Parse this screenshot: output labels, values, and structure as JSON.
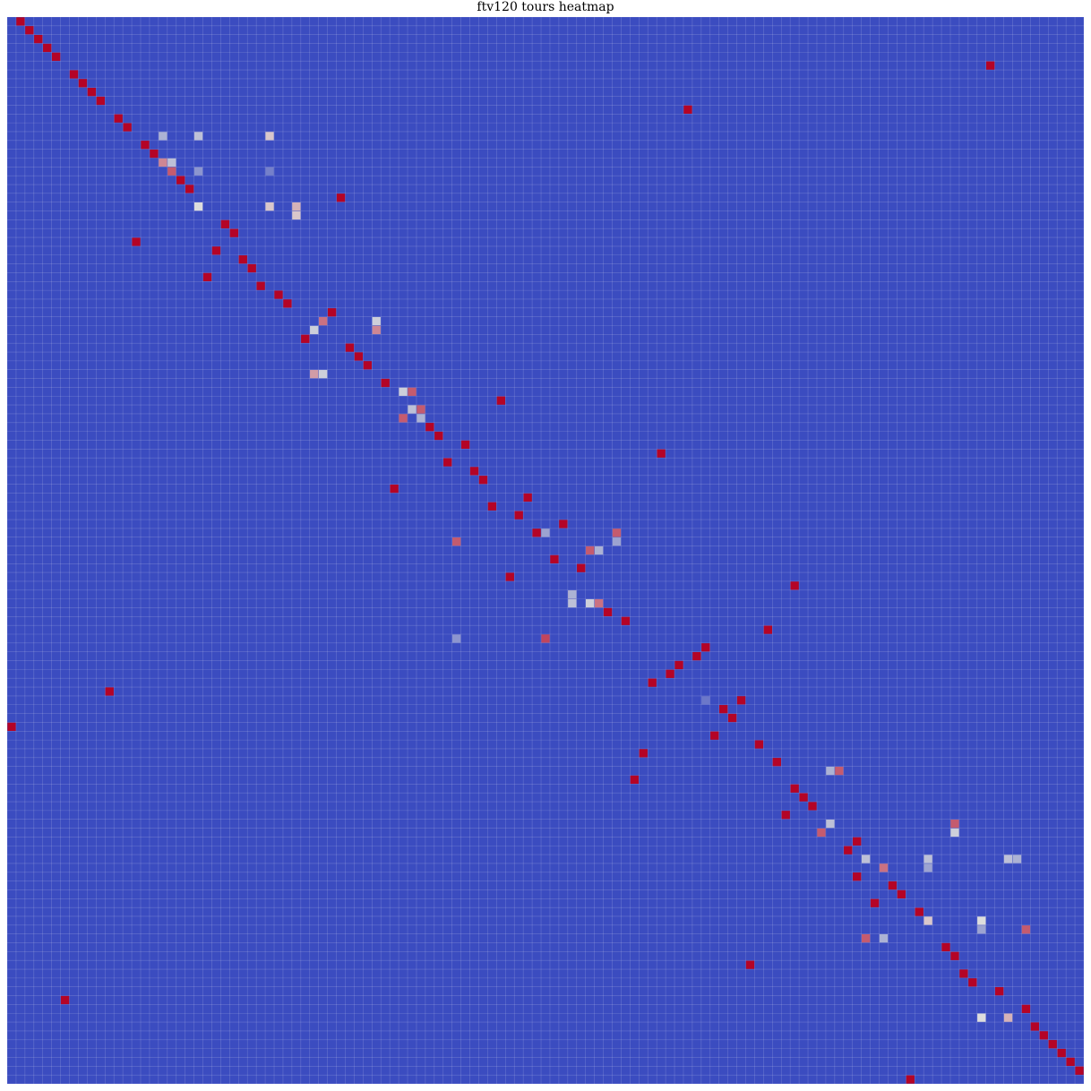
{
  "chart_data": {
    "type": "heatmap",
    "title": "ftv120 tours heatmap",
    "rows": 121,
    "cols": 121,
    "value_range": [
      0,
      1
    ],
    "colormap": "coolwarm",
    "colors": {
      "low": "#3b4cc0",
      "mid": "#dddddd",
      "high": "#b40426",
      "gridline": "#ffffff"
    },
    "grid": true,
    "legend": "none",
    "background_value": 0,
    "cells": [
      [
        0,
        1,
        1
      ],
      [
        1,
        2,
        1
      ],
      [
        2,
        3,
        1
      ],
      [
        3,
        4,
        1
      ],
      [
        4,
        5,
        1
      ],
      [
        5,
        110,
        1
      ],
      [
        6,
        7,
        1
      ],
      [
        7,
        8,
        1
      ],
      [
        8,
        9,
        1
      ],
      [
        9,
        10,
        1
      ],
      [
        10,
        76,
        1
      ],
      [
        11,
        12,
        1
      ],
      [
        12,
        13,
        1
      ],
      [
        13,
        17,
        0.35
      ],
      [
        13,
        21,
        0.4
      ],
      [
        13,
        29,
        0.55
      ],
      [
        14,
        15,
        1
      ],
      [
        15,
        16,
        1
      ],
      [
        16,
        17,
        0.7
      ],
      [
        16,
        18,
        0.4
      ],
      [
        17,
        18,
        0.8
      ],
      [
        17,
        21,
        0.25
      ],
      [
        17,
        29,
        0.18
      ],
      [
        18,
        19,
        1
      ],
      [
        19,
        20,
        1
      ],
      [
        20,
        37,
        1
      ],
      [
        21,
        21,
        0.5
      ],
      [
        21,
        29,
        0.55
      ],
      [
        21,
        32,
        0.6
      ],
      [
        22,
        32,
        0.55
      ],
      [
        23,
        24,
        1
      ],
      [
        24,
        25,
        1
      ],
      [
        25,
        14,
        1
      ],
      [
        26,
        23,
        1
      ],
      [
        27,
        26,
        1
      ],
      [
        28,
        27,
        1
      ],
      [
        29,
        22,
        1
      ],
      [
        30,
        28,
        1
      ],
      [
        31,
        30,
        1
      ],
      [
        32,
        31,
        1
      ],
      [
        33,
        36,
        1
      ],
      [
        34,
        35,
        0.75
      ],
      [
        34,
        41,
        0.45
      ],
      [
        35,
        34,
        0.45
      ],
      [
        35,
        41,
        0.7
      ],
      [
        36,
        33,
        1
      ],
      [
        37,
        38,
        1
      ],
      [
        38,
        39,
        1
      ],
      [
        39,
        40,
        1
      ],
      [
        40,
        34,
        0.65
      ],
      [
        40,
        35,
        0.45
      ],
      [
        41,
        42,
        1
      ],
      [
        42,
        44,
        0.45
      ],
      [
        42,
        45,
        0.8
      ],
      [
        43,
        55,
        1
      ],
      [
        44,
        45,
        0.4
      ],
      [
        44,
        46,
        0.8
      ],
      [
        45,
        44,
        0.8
      ],
      [
        45,
        46,
        0.35
      ],
      [
        46,
        47,
        1
      ],
      [
        47,
        48,
        1
      ],
      [
        48,
        51,
        1
      ],
      [
        49,
        73,
        1
      ],
      [
        50,
        49,
        1
      ],
      [
        51,
        52,
        1
      ],
      [
        52,
        53,
        1
      ],
      [
        53,
        43,
        1
      ],
      [
        54,
        58,
        1
      ],
      [
        55,
        54,
        1
      ],
      [
        56,
        57,
        1
      ],
      [
        57,
        62,
        1
      ],
      [
        58,
        59,
        1
      ],
      [
        58,
        60,
        0.3
      ],
      [
        58,
        68,
        0.8
      ],
      [
        59,
        50,
        0.8
      ],
      [
        59,
        68,
        0.3
      ],
      [
        60,
        65,
        0.8
      ],
      [
        60,
        66,
        0.35
      ],
      [
        61,
        61,
        1
      ],
      [
        62,
        64,
        1
      ],
      [
        63,
        56,
        1
      ],
      [
        64,
        88,
        1
      ],
      [
        65,
        63,
        0.7
      ],
      [
        65,
        63,
        0.35
      ],
      [
        66,
        63,
        0.4
      ],
      [
        66,
        65,
        0.45
      ],
      [
        66,
        66,
        0.75
      ],
      [
        67,
        67,
        1
      ],
      [
        68,
        69,
        1
      ],
      [
        69,
        85,
        1
      ],
      [
        70,
        50,
        0.25
      ],
      [
        70,
        60,
        0.85
      ],
      [
        71,
        78,
        1
      ],
      [
        72,
        77,
        1
      ],
      [
        73,
        75,
        1
      ],
      [
        74,
        74,
        1
      ],
      [
        75,
        72,
        1
      ],
      [
        76,
        11,
        1
      ],
      [
        77,
        78,
        0.15
      ],
      [
        77,
        82,
        1
      ],
      [
        78,
        80,
        1
      ],
      [
        79,
        81,
        1
      ],
      [
        80,
        0,
        1
      ],
      [
        81,
        79,
        1
      ],
      [
        82,
        84,
        1
      ],
      [
        83,
        71,
        1
      ],
      [
        84,
        86,
        1
      ],
      [
        85,
        92,
        0.35
      ],
      [
        85,
        93,
        0.8
      ],
      [
        86,
        70,
        1
      ],
      [
        87,
        88,
        1
      ],
      [
        88,
        89,
        1
      ],
      [
        89,
        90,
        1
      ],
      [
        90,
        87,
        1
      ],
      [
        91,
        92,
        0.4
      ],
      [
        91,
        106,
        0.8
      ],
      [
        92,
        91,
        0.8
      ],
      [
        92,
        106,
        0.45
      ],
      [
        93,
        95,
        1
      ],
      [
        94,
        94,
        1
      ],
      [
        95,
        96,
        0.4
      ],
      [
        95,
        103,
        0.4
      ],
      [
        95,
        112,
        0.4
      ],
      [
        95,
        113,
        0.35
      ],
      [
        96,
        98,
        0.75
      ],
      [
        96,
        103,
        0.3
      ],
      [
        97,
        95,
        1
      ],
      [
        98,
        99,
        1
      ],
      [
        99,
        100,
        1
      ],
      [
        100,
        97,
        1
      ],
      [
        101,
        102,
        1
      ],
      [
        102,
        103,
        0.55
      ],
      [
        102,
        109,
        0.5
      ],
      [
        103,
        109,
        0.3
      ],
      [
        103,
        114,
        0.8
      ],
      [
        104,
        96,
        0.8
      ],
      [
        104,
        98,
        0.35
      ],
      [
        105,
        105,
        1
      ],
      [
        106,
        106,
        1
      ],
      [
        107,
        83,
        1
      ],
      [
        108,
        107,
        1
      ],
      [
        109,
        108,
        1
      ],
      [
        110,
        111,
        1
      ],
      [
        111,
        6,
        1
      ],
      [
        112,
        114,
        1
      ],
      [
        113,
        109,
        0.5
      ],
      [
        113,
        112,
        0.6
      ],
      [
        114,
        115,
        1
      ],
      [
        115,
        116,
        1
      ],
      [
        116,
        117,
        1
      ],
      [
        117,
        118,
        1
      ],
      [
        118,
        119,
        1
      ],
      [
        119,
        120,
        1
      ],
      [
        120,
        101,
        1
      ]
    ]
  }
}
